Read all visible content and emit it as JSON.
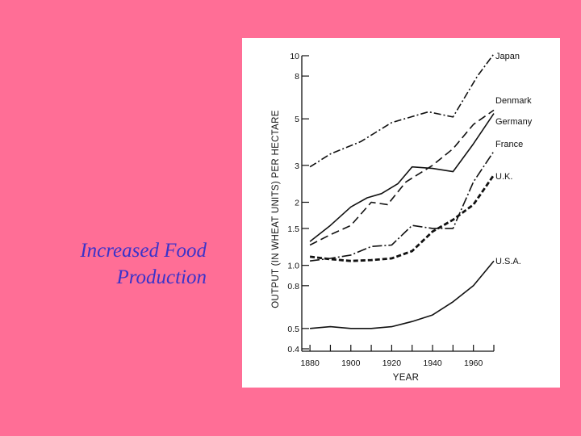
{
  "slide": {
    "title_lines": [
      "Increased Food",
      "Production"
    ],
    "background_color": "#ff6e96",
    "title_color": "#3b33c9"
  },
  "chart_data": {
    "type": "line",
    "title": "",
    "xlabel": "YEAR",
    "ylabel": "OUTPUT (IN WHEAT UNITS) PER HECTARE",
    "y_scale": "log",
    "xlim": [
      1880,
      1970
    ],
    "ylim": [
      0.4,
      10
    ],
    "x_ticks": [
      1880,
      1900,
      1920,
      1940,
      1960
    ],
    "y_ticks": [
      0.4,
      0.5,
      0.8,
      1.0,
      1.5,
      2,
      3,
      5,
      8,
      10
    ],
    "y_tick_labels": [
      "0.4",
      "0.5",
      "0.8",
      "1.0",
      "1.5",
      "2",
      "3",
      "5",
      "8",
      "10"
    ],
    "grid": false,
    "legend": "right, labels at line ends",
    "series": [
      {
        "name": "Japan",
        "dash": "dash-dot",
        "x": [
          1880,
          1890,
          1905,
          1920,
          1938,
          1950,
          1962,
          1970
        ],
        "y": [
          2.95,
          3.4,
          3.9,
          4.8,
          5.4,
          5.1,
          8.0,
          10.2
        ]
      },
      {
        "name": "Denmark",
        "dash": "dash",
        "x": [
          1880,
          1890,
          1900,
          1910,
          1918,
          1927,
          1940,
          1950,
          1960,
          1970
        ],
        "y": [
          1.25,
          1.4,
          1.55,
          2.0,
          1.95,
          2.5,
          3.0,
          3.6,
          4.7,
          5.5
        ]
      },
      {
        "name": "Germany",
        "dash": "solid",
        "x": [
          1880,
          1890,
          1900,
          1908,
          1915,
          1923,
          1930,
          1940,
          1950,
          1960,
          1970
        ],
        "y": [
          1.3,
          1.55,
          1.9,
          2.1,
          2.2,
          2.45,
          2.95,
          2.9,
          2.8,
          3.8,
          5.3
        ]
      },
      {
        "name": "France",
        "dash": "dash-dot-long",
        "x": [
          1880,
          1890,
          1900,
          1910,
          1920,
          1930,
          1940,
          1950,
          1960,
          1970
        ],
        "y": [
          1.05,
          1.08,
          1.12,
          1.23,
          1.25,
          1.55,
          1.5,
          1.5,
          2.5,
          3.5
        ]
      },
      {
        "name": "U.K.",
        "dash": "heavy-dash",
        "x": [
          1880,
          1890,
          1900,
          1910,
          1920,
          1930,
          1940,
          1950,
          1960,
          1970
        ],
        "y": [
          1.1,
          1.07,
          1.05,
          1.06,
          1.08,
          1.17,
          1.45,
          1.65,
          1.95,
          2.7
        ]
      },
      {
        "name": "U.S.A.",
        "dash": "solid",
        "x": [
          1880,
          1890,
          1900,
          1910,
          1920,
          1930,
          1940,
          1950,
          1960,
          1970
        ],
        "y": [
          0.5,
          0.51,
          0.5,
          0.5,
          0.51,
          0.54,
          0.58,
          0.67,
          0.8,
          1.05
        ]
      }
    ]
  }
}
